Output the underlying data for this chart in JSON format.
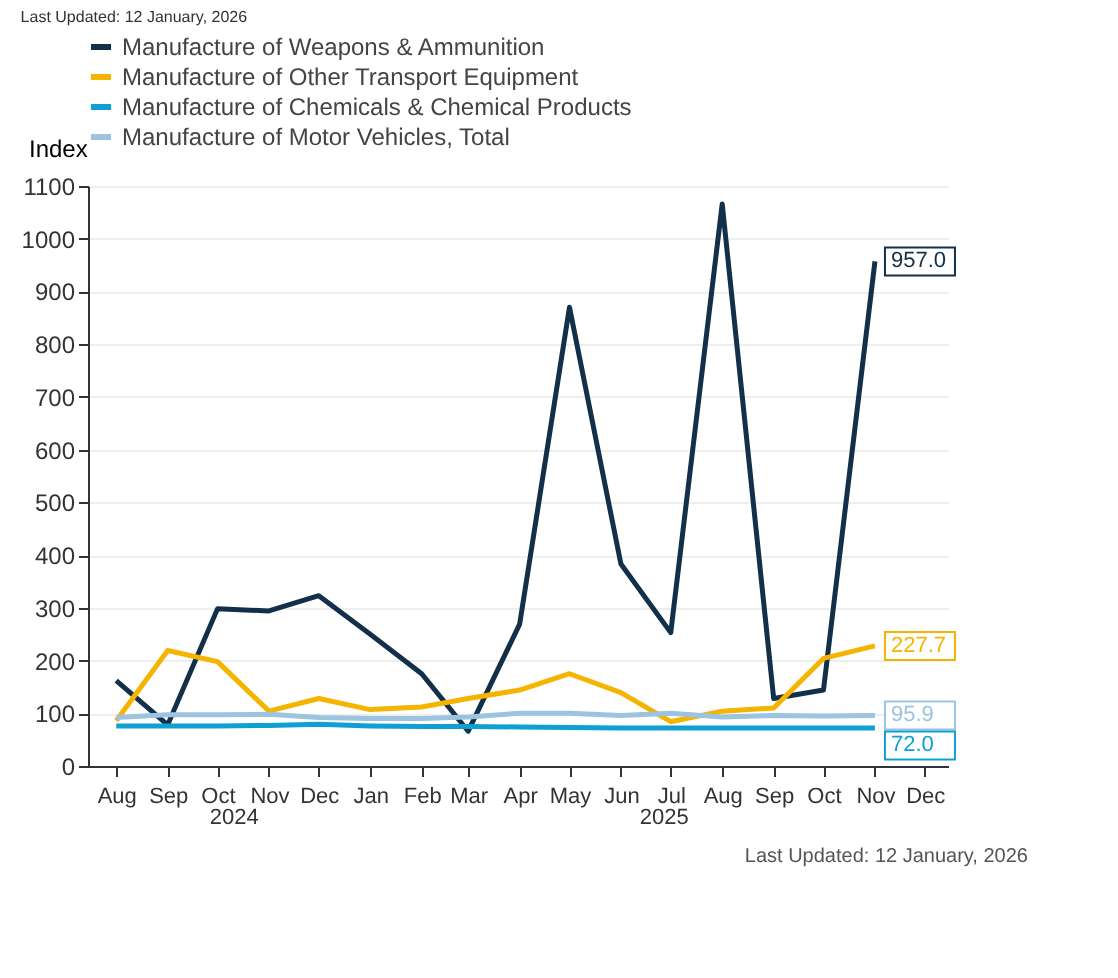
{
  "chart_data": {
    "type": "line",
    "ylabel": "Index",
    "x": [
      "2024-08",
      "2024-09",
      "2024-10",
      "2024-11",
      "2024-12",
      "2025-01",
      "2025-02",
      "2025-03",
      "2025-04",
      "2025-05",
      "2025-06",
      "2025-07",
      "2025-08",
      "2025-09",
      "2025-10",
      "2025-11"
    ],
    "series": [
      {
        "name": "Manufacture of Weapons & Ammunition",
        "color": "#13304a",
        "values": [
          162,
          78,
          298,
          294,
          323,
          250,
          175,
          66,
          269,
          870,
          383,
          253,
          1066,
          128,
          144,
          957
        ],
        "value_labels": [
          null,
          null,
          null,
          null,
          null,
          null,
          null,
          null,
          null,
          null,
          null,
          null,
          null,
          null,
          null,
          "957.0"
        ]
      },
      {
        "name": "Manufacture of Other Transport Equipment",
        "color": "#f5b400",
        "values": [
          86,
          219,
          198,
          104,
          128,
          107,
          112,
          128,
          144,
          175,
          139,
          84,
          104,
          110,
          204,
          227.7
        ],
        "value_labels": [
          null,
          null,
          null,
          null,
          null,
          null,
          null,
          null,
          null,
          null,
          null,
          null,
          null,
          null,
          null,
          "227.7"
        ]
      },
      {
        "name": "Manufacture of Chemicals & Chemical Products",
        "color": "#0f9fd3",
        "values": [
          76,
          76,
          76,
          77,
          79,
          76,
          75,
          75,
          74,
          73,
          72,
          72,
          72,
          72,
          72,
          72.0
        ],
        "value_labels": [
          null,
          null,
          null,
          null,
          null,
          null,
          null,
          null,
          null,
          null,
          null,
          null,
          null,
          null,
          null,
          "72.0"
        ]
      },
      {
        "name": "Manufacture of Motor Vehicles, Total",
        "color": "#9cc3e0",
        "values": [
          92,
          97,
          97,
          98,
          92,
          90,
          90,
          93,
          100,
          100,
          96,
          100,
          93,
          96,
          95,
          95.9
        ],
        "value_labels": [
          null,
          null,
          null,
          null,
          null,
          null,
          null,
          null,
          null,
          null,
          null,
          null,
          null,
          null,
          null,
          "95.9"
        ]
      }
    ],
    "xlim": [
      "2024-07-15",
      "2025-12-15"
    ],
    "xticks": [
      {
        "value": "2024-08",
        "label": "Aug"
      },
      {
        "value": "2024-09",
        "label": "Sep"
      },
      {
        "value": "2024-10",
        "label": "Oct"
      },
      {
        "value": "2024-11",
        "label": "Nov"
      },
      {
        "value": "2024-12",
        "label": "Dec"
      },
      {
        "value": "2025-01",
        "label": "Jan"
      },
      {
        "value": "2025-02",
        "label": "Feb"
      },
      {
        "value": "2025-03",
        "label": "Mar"
      },
      {
        "value": "2025-04",
        "label": "Apr"
      },
      {
        "value": "2025-05",
        "label": "May"
      },
      {
        "value": "2025-06",
        "label": "Jun"
      },
      {
        "value": "2025-07",
        "label": "Jul"
      },
      {
        "value": "2025-08",
        "label": "Aug"
      },
      {
        "value": "2025-09",
        "label": "Sep"
      },
      {
        "value": "2025-10",
        "label": "Oct"
      },
      {
        "value": "2025-11",
        "label": "Nov"
      },
      {
        "value": "2025-12",
        "label": "Dec"
      }
    ],
    "ylim": [
      0,
      1100
    ],
    "yticks": [
      0,
      100,
      200,
      300,
      400,
      500,
      600,
      700,
      800,
      900,
      1000,
      1100
    ],
    "grid": "y",
    "legend": "top",
    "marker": "none",
    "line_style": "solid",
    "annotations": [
      "Last Updated: 12 January, 2026",
      "2024",
      "2025",
      "Last Updated: 12 January, 2026"
    ]
  }
}
